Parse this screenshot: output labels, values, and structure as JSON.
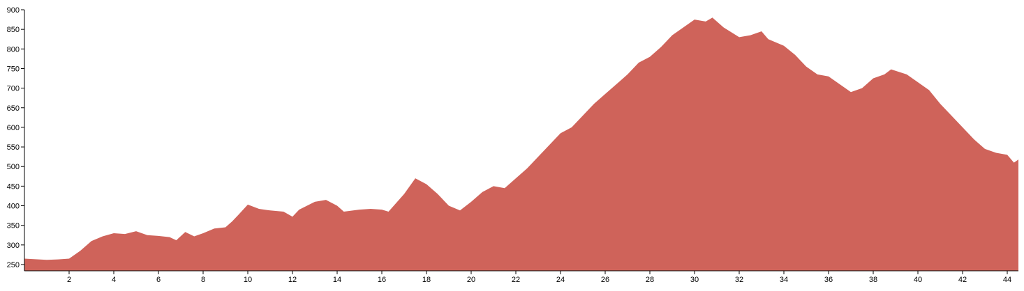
{
  "chart_data": {
    "type": "area",
    "color": "#cf635a",
    "x": [
      0,
      1,
      1.5,
      2,
      2.5,
      3,
      3.5,
      4,
      4.5,
      5,
      5.5,
      6,
      6.5,
      6.8,
      7.2,
      7.6,
      8,
      8.5,
      9,
      9.3,
      9.6,
      10,
      10.5,
      11,
      11.6,
      12,
      12.3,
      13,
      13.5,
      14,
      14.3,
      15,
      15.5,
      16,
      16.3,
      17,
      17.5,
      18,
      18.5,
      19,
      19.5,
      20,
      20.5,
      21,
      21.5,
      22,
      22.5,
      23,
      23.5,
      24,
      24.5,
      25,
      25.5,
      26,
      26.5,
      27,
      27.5,
      28,
      28.5,
      29,
      29.5,
      30,
      30.5,
      30.8,
      31.3,
      32,
      32.5,
      33,
      33.3,
      34,
      34.5,
      35,
      35.5,
      36,
      36.5,
      37,
      37.5,
      38,
      38.5,
      38.8,
      39.5,
      40,
      40.5,
      41,
      41.5,
      42,
      42.5,
      43,
      43.5,
      44,
      44.3,
      44.5
    ],
    "values": [
      265,
      262,
      263,
      265,
      285,
      310,
      322,
      330,
      328,
      335,
      325,
      323,
      320,
      312,
      333,
      322,
      330,
      342,
      345,
      360,
      378,
      403,
      392,
      388,
      385,
      372,
      390,
      410,
      415,
      400,
      385,
      390,
      392,
      390,
      385,
      430,
      470,
      455,
      430,
      400,
      388,
      410,
      435,
      450,
      445,
      470,
      495,
      525,
      555,
      585,
      600,
      630,
      660,
      685,
      710,
      735,
      765,
      780,
      805,
      835,
      855,
      875,
      870,
      880,
      855,
      830,
      835,
      845,
      825,
      808,
      785,
      755,
      735,
      730,
      710,
      690,
      700,
      725,
      735,
      748,
      735,
      715,
      695,
      660,
      630,
      600,
      570,
      545,
      535,
      530,
      510,
      518
    ],
    "xlim": [
      0,
      44.5
    ],
    "xticks": [
      2,
      4,
      6,
      8,
      10,
      12,
      14,
      16,
      18,
      20,
      22,
      24,
      26,
      28,
      30,
      32,
      34,
      36,
      38,
      40,
      42,
      44
    ],
    "ylim": [
      234,
      900
    ],
    "yticks": [
      250,
      300,
      350,
      400,
      450,
      500,
      550,
      600,
      650,
      700,
      750,
      800,
      850,
      900
    ]
  }
}
